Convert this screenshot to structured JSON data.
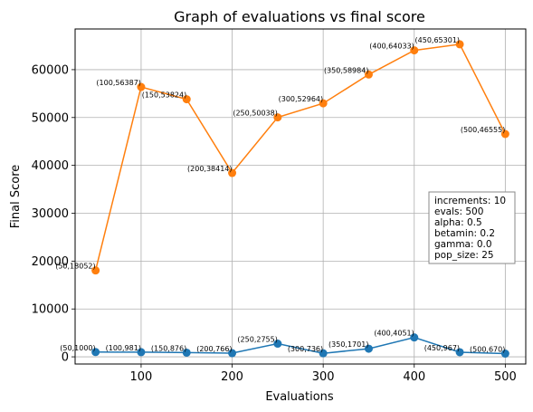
{
  "chart_data": {
    "type": "line",
    "title": "Graph of evaluations vs final score",
    "xlabel": "Evaluations",
    "ylabel": "Final Score",
    "xlim": [
      27.5,
      522.5
    ],
    "ylim": [
      -1500,
      68500
    ],
    "xticks": [
      100,
      200,
      300,
      400,
      500
    ],
    "yticks": [
      0,
      10000,
      20000,
      30000,
      40000,
      50000,
      60000
    ],
    "grid": true,
    "series": [
      {
        "color": "#1f77b4",
        "x": [
          50,
          100,
          150,
          200,
          250,
          300,
          350,
          400,
          450,
          500
        ],
        "y": [
          1000,
          981,
          876,
          766,
          2755,
          736,
          1701,
          4051,
          967,
          670
        ],
        "labels": [
          "(50,1000)",
          "(100,981)",
          "(150,876)",
          "(200,766)",
          "(250,2755)",
          "(300,736)",
          "(350,1701)",
          "(400,4051)",
          "(450,967)",
          "(500,670)"
        ]
      },
      {
        "color": "#ff7f0e",
        "x": [
          50,
          100,
          150,
          200,
          250,
          300,
          350,
          400,
          450,
          500
        ],
        "y": [
          18052,
          56387,
          53824,
          38414,
          50038,
          52964,
          58984,
          64033,
          65301,
          46555
        ],
        "labels": [
          "(50,18052)",
          "(100,56387)",
          "(150,53824)",
          "(200,38414)",
          "(250,50038)",
          "(300,52964)",
          "(350,58984)",
          "(400,64033)",
          "(450,65301)",
          "(500,46555)"
        ]
      }
    ],
    "annotation": [
      "increments: 10",
      "evals: 500",
      "alpha: 0.5",
      "betamin: 0.2",
      "gamma: 0.0",
      "pop_size: 25"
    ]
  }
}
